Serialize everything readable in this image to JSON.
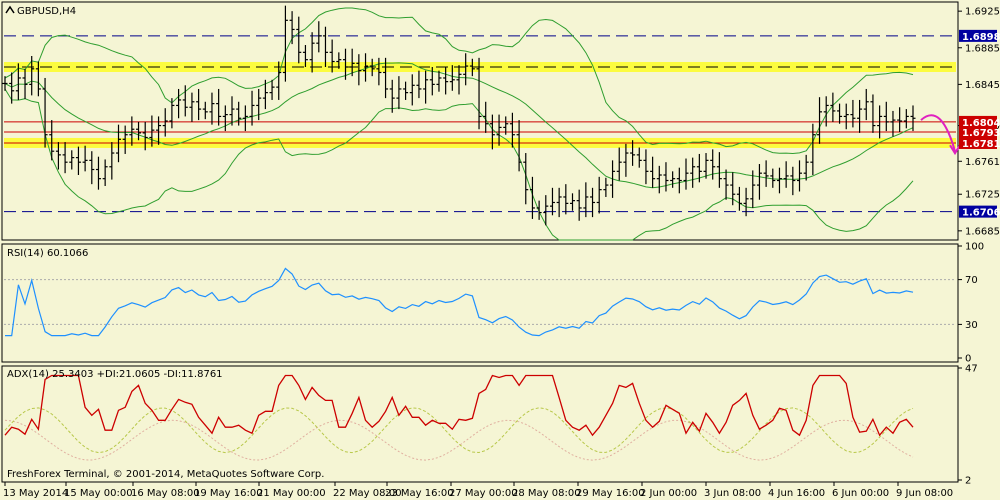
{
  "window": {
    "title": "GBPUSD,H4",
    "copyright": "FreshForex Terminal, © 2001-2014, MetaQuotes Software Corp."
  },
  "colors": {
    "background": "#f5f5d4",
    "candle": "#000000",
    "bollinger": "#2f9e2f",
    "level_dash": "#00008b",
    "yellow_band": "#ffff00",
    "red_level": "#cc0000",
    "rsi_line": "#1e90ff",
    "adx_line": "#cc0000",
    "di_plus": "#b8c84a",
    "di_minus": "#e0b0a0",
    "tag_blue": "#0000a0",
    "tag_red": "#cc0000",
    "arrow": "#e020c0"
  },
  "chart_data": [
    {
      "type": "candlestick",
      "title": "GBPUSD,H4",
      "y_ticks": [
        "1.6925",
        "1.6885",
        "1.6845",
        "1.6800",
        "1.6761",
        "1.6725",
        "1.6685"
      ],
      "ylim": [
        1.6675,
        1.6935
      ],
      "x_labels": [
        "13 May 2014",
        "15 May 00:00",
        "16 May 08:00",
        "19 May 16:00",
        "21 May 00:00",
        "22 May 08:00",
        "23 May 16:00",
        "27 May 00:00",
        "28 May 08:00",
        "29 May 16:00",
        "2 Jun 00:00",
        "3 Jun 08:00",
        "4 Jun 16:00",
        "6 Jun 00:00",
        "9 Jun 08:00"
      ],
      "levels": [
        {
          "value": 1.6898,
          "label": "1.6898",
          "kind": "dashed",
          "tag": "blue"
        },
        {
          "value": 1.6864,
          "label": "",
          "kind": "yellow-band",
          "tag": "none"
        },
        {
          "value": 1.6804,
          "label": "1.6804",
          "kind": "solid",
          "tag": "red"
        },
        {
          "value": 1.6793,
          "label": "1.6793",
          "kind": "solid",
          "tag": "red"
        },
        {
          "value": 1.6781,
          "label": "1.6781",
          "kind": "yellow-band",
          "tag": "red"
        },
        {
          "value": 1.6706,
          "label": "1.6706",
          "kind": "dashed",
          "tag": "blue"
        }
      ],
      "close": [
        1.6846,
        1.6838,
        1.6852,
        1.6845,
        1.6862,
        1.684,
        1.679,
        1.6772,
        1.6768,
        1.676,
        1.6765,
        1.676,
        1.6762,
        1.6752,
        1.6742,
        1.6755,
        1.677,
        1.6785,
        1.679,
        1.6796,
        1.6792,
        1.6787,
        1.6795,
        1.68,
        1.6805,
        1.6822,
        1.6828,
        1.682,
        1.6826,
        1.6818,
        1.6815,
        1.6824,
        1.681,
        1.6812,
        1.6818,
        1.6808,
        1.681,
        1.6822,
        1.683,
        1.6836,
        1.6842,
        1.6858,
        1.6915,
        1.6905,
        1.688,
        1.6872,
        1.689,
        1.6898,
        1.688,
        1.687,
        1.6872,
        1.6864,
        1.6868,
        1.686,
        1.6865,
        1.6862,
        1.6858,
        1.684,
        1.683,
        1.684,
        1.6836,
        1.6844,
        1.684,
        1.685,
        1.6845,
        1.6852,
        1.6848,
        1.685,
        1.6856,
        1.6865,
        1.6862,
        1.681,
        1.6802,
        1.679,
        1.6798,
        1.6802,
        1.679,
        1.676,
        1.673,
        1.671,
        1.6705,
        1.6712,
        1.6716,
        1.6722,
        1.6715,
        1.6718,
        1.671,
        1.6722,
        1.6716,
        1.673,
        1.6735,
        1.675,
        1.676,
        1.677,
        1.6768,
        1.6762,
        1.675,
        1.6742,
        1.6746,
        1.674,
        1.6742,
        1.674,
        1.6748,
        1.6755,
        1.675,
        1.6762,
        1.6755,
        1.6742,
        1.6735,
        1.6725,
        1.6715,
        1.672,
        1.6735,
        1.6748,
        1.6745,
        1.674,
        1.6742,
        1.6745,
        1.674,
        1.6748,
        1.676,
        1.679,
        1.6815,
        1.6822,
        1.6816,
        1.681,
        1.6812,
        1.6808,
        1.6818,
        1.6826,
        1.68,
        1.681,
        1.6804,
        1.6806,
        1.6805,
        1.681,
        1.6808
      ],
      "rsi": {
        "label": "RSI(14) 60.1066",
        "ticks": [
          "100",
          "70",
          "30",
          "0"
        ],
        "ylim": [
          0,
          100
        ],
        "levels": [
          70,
          30
        ]
      },
      "adx": {
        "label": "ADX(14) 25.3403 +DI:21.0605 -DI:11.8761",
        "ticks": [
          "47",
          "2"
        ],
        "ylim": [
          2,
          47
        ]
      }
    }
  ]
}
